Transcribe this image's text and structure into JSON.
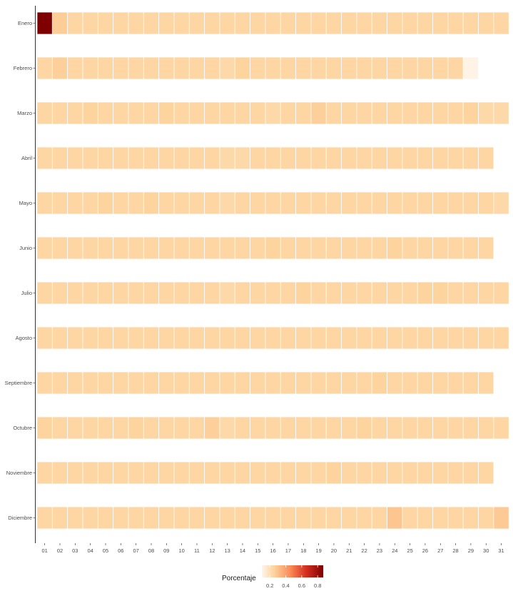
{
  "chart_data": {
    "type": "heatmap",
    "title": "",
    "xlabel": "",
    "ylabel": "",
    "x_categories": [
      "01",
      "02",
      "03",
      "04",
      "05",
      "06",
      "07",
      "08",
      "09",
      "10",
      "11",
      "12",
      "13",
      "14",
      "15",
      "16",
      "17",
      "18",
      "19",
      "20",
      "21",
      "22",
      "23",
      "24",
      "25",
      "26",
      "27",
      "28",
      "29",
      "30",
      "31"
    ],
    "y_categories": [
      "Enero",
      "Febrero",
      "Marzo",
      "Abril",
      "Mayo",
      "Junio",
      "Julio",
      "Agosto",
      "Septiembre",
      "Octubre",
      "Noviembre",
      "Diciembre"
    ],
    "rows": [
      {
        "month": "Enero",
        "values": [
          0.87,
          0.27,
          0.24,
          0.24,
          0.24,
          0.24,
          0.24,
          0.24,
          0.24,
          0.24,
          0.24,
          0.24,
          0.24,
          0.24,
          0.24,
          0.24,
          0.24,
          0.24,
          0.24,
          0.24,
          0.24,
          0.24,
          0.24,
          0.24,
          0.24,
          0.24,
          0.24,
          0.24,
          0.24,
          0.24,
          0.24
        ]
      },
      {
        "month": "Febrero",
        "values": [
          0.24,
          0.26,
          0.24,
          0.24,
          0.24,
          0.24,
          0.24,
          0.24,
          0.24,
          0.24,
          0.24,
          0.24,
          0.23,
          0.25,
          0.24,
          0.24,
          0.24,
          0.24,
          0.24,
          0.24,
          0.24,
          0.24,
          0.24,
          0.24,
          0.24,
          0.24,
          0.24,
          0.24,
          0.11
        ]
      },
      {
        "month": "Marzo",
        "values": [
          0.24,
          0.24,
          0.24,
          0.25,
          0.24,
          0.24,
          0.24,
          0.24,
          0.25,
          0.24,
          0.24,
          0.24,
          0.24,
          0.24,
          0.24,
          0.23,
          0.24,
          0.24,
          0.26,
          0.24,
          0.24,
          0.24,
          0.24,
          0.24,
          0.24,
          0.24,
          0.24,
          0.24,
          0.25,
          0.23,
          0.23
        ]
      },
      {
        "month": "Abril",
        "values": [
          0.24,
          0.24,
          0.24,
          0.24,
          0.24,
          0.24,
          0.24,
          0.24,
          0.24,
          0.24,
          0.24,
          0.24,
          0.23,
          0.23,
          0.24,
          0.24,
          0.24,
          0.24,
          0.24,
          0.24,
          0.24,
          0.24,
          0.24,
          0.24,
          0.24,
          0.24,
          0.24,
          0.24,
          0.24,
          0.24
        ]
      },
      {
        "month": "Mayo",
        "values": [
          0.24,
          0.24,
          0.24,
          0.24,
          0.25,
          0.24,
          0.24,
          0.25,
          0.24,
          0.24,
          0.24,
          0.24,
          0.23,
          0.24,
          0.24,
          0.24,
          0.24,
          0.24,
          0.24,
          0.24,
          0.24,
          0.24,
          0.24,
          0.24,
          0.24,
          0.24,
          0.24,
          0.24,
          0.24,
          0.24,
          0.23
        ]
      },
      {
        "month": "Junio",
        "values": [
          0.24,
          0.24,
          0.24,
          0.24,
          0.24,
          0.24,
          0.24,
          0.24,
          0.24,
          0.24,
          0.24,
          0.24,
          0.24,
          0.24,
          0.24,
          0.25,
          0.24,
          0.24,
          0.24,
          0.24,
          0.24,
          0.24,
          0.24,
          0.25,
          0.24,
          0.24,
          0.24,
          0.24,
          0.24,
          0.24
        ]
      },
      {
        "month": "Julio",
        "values": [
          0.24,
          0.24,
          0.24,
          0.24,
          0.24,
          0.24,
          0.24,
          0.24,
          0.24,
          0.24,
          0.24,
          0.24,
          0.23,
          0.24,
          0.24,
          0.24,
          0.24,
          0.25,
          0.24,
          0.24,
          0.24,
          0.24,
          0.24,
          0.24,
          0.24,
          0.25,
          0.25,
          0.24,
          0.24,
          0.24,
          0.24
        ]
      },
      {
        "month": "Agosto",
        "values": [
          0.24,
          0.24,
          0.24,
          0.24,
          0.24,
          0.24,
          0.24,
          0.24,
          0.24,
          0.24,
          0.24,
          0.24,
          0.24,
          0.24,
          0.24,
          0.24,
          0.24,
          0.24,
          0.24,
          0.24,
          0.24,
          0.24,
          0.24,
          0.24,
          0.24,
          0.24,
          0.24,
          0.24,
          0.24,
          0.24,
          0.24
        ]
      },
      {
        "month": "Septiembre",
        "values": [
          0.24,
          0.24,
          0.24,
          0.24,
          0.24,
          0.24,
          0.24,
          0.24,
          0.24,
          0.24,
          0.24,
          0.24,
          0.24,
          0.24,
          0.24,
          0.24,
          0.24,
          0.24,
          0.24,
          0.24,
          0.24,
          0.24,
          0.25,
          0.24,
          0.24,
          0.24,
          0.24,
          0.24,
          0.24,
          0.24
        ]
      },
      {
        "month": "Octubre",
        "values": [
          0.25,
          0.24,
          0.24,
          0.24,
          0.24,
          0.24,
          0.25,
          0.24,
          0.24,
          0.24,
          0.24,
          0.26,
          0.23,
          0.24,
          0.24,
          0.24,
          0.24,
          0.24,
          0.24,
          0.24,
          0.24,
          0.25,
          0.24,
          0.24,
          0.24,
          0.24,
          0.24,
          0.24,
          0.24,
          0.24,
          0.24
        ]
      },
      {
        "month": "Noviembre",
        "values": [
          0.24,
          0.24,
          0.24,
          0.24,
          0.24,
          0.24,
          0.24,
          0.24,
          0.24,
          0.24,
          0.24,
          0.24,
          0.24,
          0.24,
          0.24,
          0.24,
          0.24,
          0.24,
          0.24,
          0.25,
          0.24,
          0.24,
          0.24,
          0.24,
          0.24,
          0.24,
          0.24,
          0.24,
          0.24,
          0.24
        ]
      },
      {
        "month": "Diciembre",
        "values": [
          0.24,
          0.24,
          0.24,
          0.24,
          0.24,
          0.24,
          0.24,
          0.24,
          0.24,
          0.24,
          0.24,
          0.24,
          0.24,
          0.24,
          0.24,
          0.24,
          0.24,
          0.24,
          0.24,
          0.24,
          0.24,
          0.24,
          0.24,
          0.29,
          0.24,
          0.24,
          0.24,
          0.24,
          0.24,
          0.24,
          0.28
        ]
      }
    ],
    "color_scale": {
      "stops": [
        {
          "value": 0.1,
          "color": "#fff5eb"
        },
        {
          "value": 0.25,
          "color": "#fdd49e"
        },
        {
          "value": 0.45,
          "color": "#fc8d59"
        },
        {
          "value": 0.65,
          "color": "#d7301f"
        },
        {
          "value": 0.87,
          "color": "#7f0000"
        }
      ]
    },
    "legend": {
      "title": "Porcentaje",
      "ticks": [
        "0.2",
        "0.4",
        "0.6",
        "0.8"
      ],
      "tick_values": [
        0.2,
        0.4,
        0.6,
        0.8
      ],
      "range": [
        0.1,
        0.87
      ],
      "position": "bottom"
    }
  }
}
